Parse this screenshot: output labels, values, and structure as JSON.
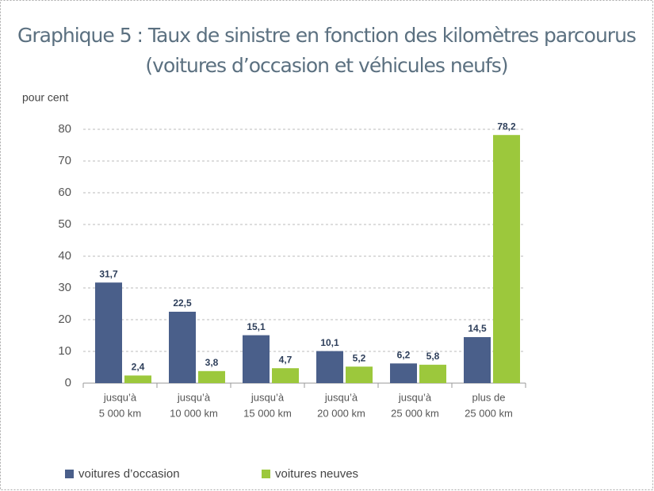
{
  "chart_data": {
    "type": "bar",
    "title": [
      "Graphique 5 : Taux de sinistre en fonction des kilomètres parcourus",
      "(voitures d’occasion et véhicules neufs)"
    ],
    "y_label": "pour cent",
    "categories": [
      [
        "jusqu’à",
        "5 000 km"
      ],
      [
        "jusqu’à",
        "10 000 km"
      ],
      [
        "jusqu’à",
        "15 000 km"
      ],
      [
        "jusqu’à",
        "20 000 km"
      ],
      [
        "jusqu’à",
        "25 000 km"
      ],
      [
        "plus de",
        "25 000 km"
      ]
    ],
    "series": [
      {
        "name": "voitures d’occasion",
        "color": "#4a5f8a",
        "values": [
          31.7,
          22.5,
          15.1,
          10.1,
          6.2,
          14.5
        ],
        "value_labels": [
          "31,7",
          "22,5",
          "15,1",
          "10,1",
          "6,2",
          "14,5"
        ]
      },
      {
        "name": "voitures neuves",
        "color": "#9cc83c",
        "values": [
          2.4,
          3.8,
          4.7,
          5.2,
          5.8,
          78.2
        ],
        "value_labels": [
          "2,4",
          "3,8",
          "4,7",
          "5,2",
          "5,8",
          "78,2"
        ]
      }
    ],
    "ylim": [
      0,
      80
    ],
    "yticks": [
      0,
      10,
      20,
      30,
      40,
      50,
      60,
      70,
      80
    ],
    "grid": true
  }
}
